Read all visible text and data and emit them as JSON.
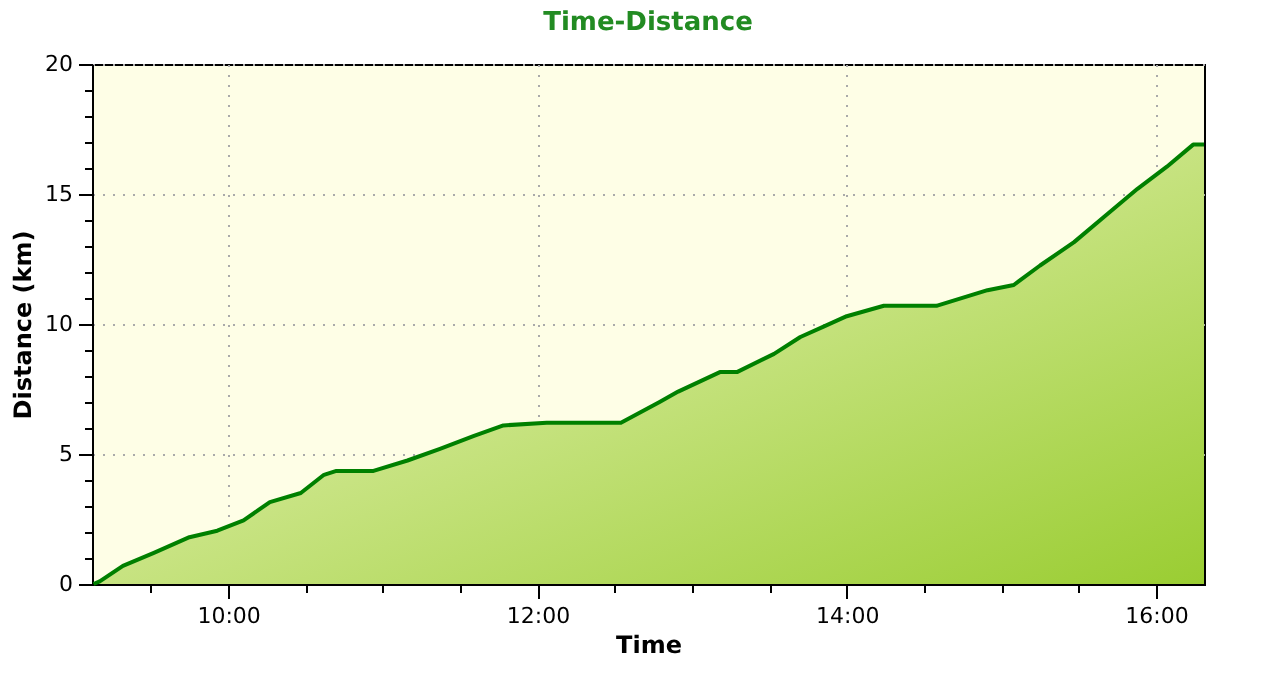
{
  "chart_data": {
    "type": "area",
    "title": "Time-Distance",
    "xlabel": "Time",
    "ylabel": "Distance (km)",
    "x": [
      9.13,
      9.17,
      9.32,
      9.52,
      9.75,
      9.93,
      10.1,
      10.27,
      10.47,
      10.62,
      10.7,
      10.94,
      11.16,
      11.37,
      11.59,
      11.78,
      12.06,
      12.54,
      12.79,
      12.91,
      13.18,
      13.29,
      13.53,
      13.7,
      13.85,
      14.0,
      14.24,
      14.58,
      14.91,
      15.08,
      15.25,
      15.47,
      15.68,
      15.88,
      16.07,
      16.24,
      16.31
    ],
    "series": [
      {
        "color": "#008000",
        "values": [
          0,
          0.1,
          0.7,
          1.2,
          1.8,
          2.05,
          2.45,
          3.15,
          3.5,
          4.2,
          4.35,
          4.35,
          4.75,
          5.2,
          5.7,
          6.1,
          6.2,
          6.2,
          7.0,
          7.4,
          8.15,
          8.15,
          8.85,
          9.5,
          9.9,
          10.3,
          10.7,
          10.7,
          11.3,
          11.5,
          12.25,
          13.15,
          14.2,
          15.2,
          16.05,
          16.9,
          16.9
        ]
      }
    ],
    "xlim": [
      9.12,
      16.31
    ],
    "xticks": [
      {
        "value": 9.5,
        "label": null
      },
      {
        "value": 10,
        "label": "10:00"
      },
      {
        "value": 10.5,
        "label": null
      },
      {
        "value": 11,
        "label": null
      },
      {
        "value": 11.5,
        "label": null
      },
      {
        "value": 12,
        "label": "12:00"
      },
      {
        "value": 12.5,
        "label": null
      },
      {
        "value": 13,
        "label": null
      },
      {
        "value": 13.5,
        "label": null
      },
      {
        "value": 14,
        "label": "14:00"
      },
      {
        "value": 14.5,
        "label": null
      },
      {
        "value": 15,
        "label": null
      },
      {
        "value": 15.5,
        "label": null
      },
      {
        "value": 16,
        "label": "16:00"
      }
    ],
    "ylim": [
      0,
      20
    ],
    "yticks": [
      0,
      {
        "value": 1,
        "label": null
      },
      {
        "value": 2,
        "label": null
      },
      {
        "value": 3,
        "label": null
      },
      {
        "value": 4,
        "label": null
      },
      5,
      {
        "value": 6,
        "label": null
      },
      {
        "value": 7,
        "label": null
      },
      {
        "value": 8,
        "label": null
      },
      {
        "value": 9,
        "label": null
      },
      10,
      {
        "value": 11,
        "label": null
      },
      {
        "value": 12,
        "label": null
      },
      {
        "value": 13,
        "label": null
      },
      {
        "value": 14,
        "label": null
      },
      15,
      {
        "value": 16,
        "label": null
      },
      {
        "value": 17,
        "label": null
      },
      {
        "value": 18,
        "label": null
      },
      {
        "value": 19,
        "label": null
      },
      20
    ],
    "grid": true
  }
}
